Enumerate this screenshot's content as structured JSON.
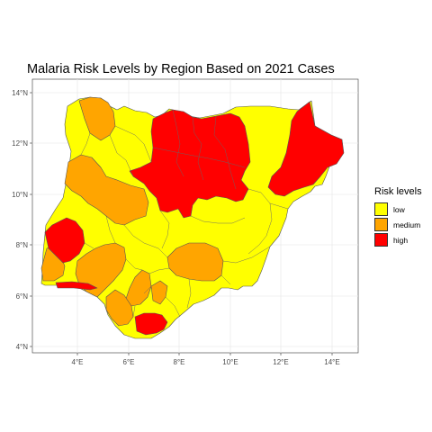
{
  "title": "Malaria Risk Levels by Region Based on 2021 Cases",
  "axes": {
    "x_ticks": [
      "4°E",
      "6°E",
      "8°E",
      "10°E",
      "12°E",
      "14°E"
    ],
    "y_ticks": [
      "4°N",
      "6°N",
      "8°N",
      "10°N",
      "12°N",
      "14°N"
    ]
  },
  "legend": {
    "title": "Risk levels",
    "items": [
      {
        "label": "low",
        "color": "#FFFF00"
      },
      {
        "label": "medium",
        "color": "#FFA500"
      },
      {
        "label": "high",
        "color": "#FF0000"
      }
    ]
  },
  "map": {
    "grid": true,
    "x_range": [
      2.5,
      15
    ],
    "y_range": [
      3.8,
      14.2
    ]
  }
}
